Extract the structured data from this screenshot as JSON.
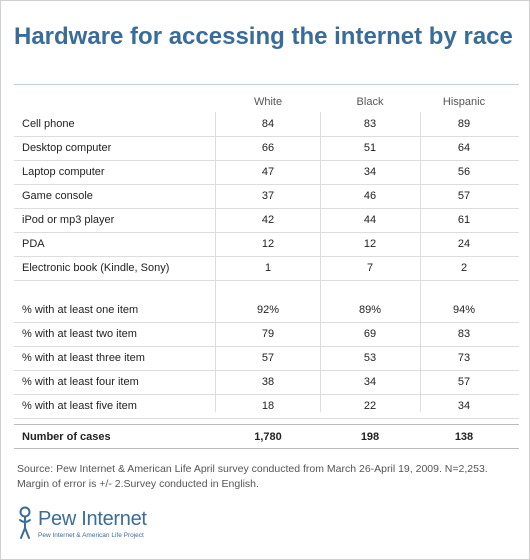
{
  "title": "Hardware for accessing the internet by race",
  "source": "Source: Pew Internet & American Life April survey conducted from March 26-April 19, 2009. N=2,253. Margin of error is +/- 2.Survey conducted in English.",
  "logo": {
    "name": "Pew Internet",
    "subtitle": "Pew Internet & American Life Project"
  },
  "colors": {
    "title": "#3a6c9a",
    "text": "#222222",
    "muted": "#555555",
    "rule": "#dddddd"
  },
  "chart_data": {
    "type": "table",
    "columns": [
      "White",
      "Black",
      "Hispanic"
    ],
    "sections": [
      {
        "rows": [
          {
            "label": "Cell phone",
            "values": [
              "84",
              "83",
              "89"
            ]
          },
          {
            "label": "Desktop computer",
            "values": [
              "66",
              "51",
              "64"
            ]
          },
          {
            "label": "Laptop computer",
            "values": [
              "47",
              "34",
              "56"
            ]
          },
          {
            "label": "Game console",
            "values": [
              "37",
              "46",
              "57"
            ]
          },
          {
            "label": "iPod or mp3 player",
            "values": [
              "42",
              "44",
              "61"
            ]
          },
          {
            "label": "PDA",
            "values": [
              "12",
              "12",
              "24"
            ]
          },
          {
            "label": "Electronic book (Kindle, Sony)",
            "values": [
              "1",
              "7",
              "2"
            ]
          }
        ]
      },
      {
        "rows": [
          {
            "label": "% with at least one item",
            "values": [
              "92%",
              "89%",
              "94%"
            ]
          },
          {
            "label": "% with at least two item",
            "values": [
              "79",
              "69",
              "83"
            ]
          },
          {
            "label": "% with at least three item",
            "values": [
              "57",
              "53",
              "73"
            ]
          },
          {
            "label": "% with at least four item",
            "values": [
              "38",
              "34",
              "57"
            ]
          },
          {
            "label": "% with at least five item",
            "values": [
              "18",
              "22",
              "34"
            ]
          }
        ]
      }
    ],
    "cases": {
      "label": "Number of cases",
      "values": [
        "1,780",
        "198",
        "138"
      ]
    }
  }
}
